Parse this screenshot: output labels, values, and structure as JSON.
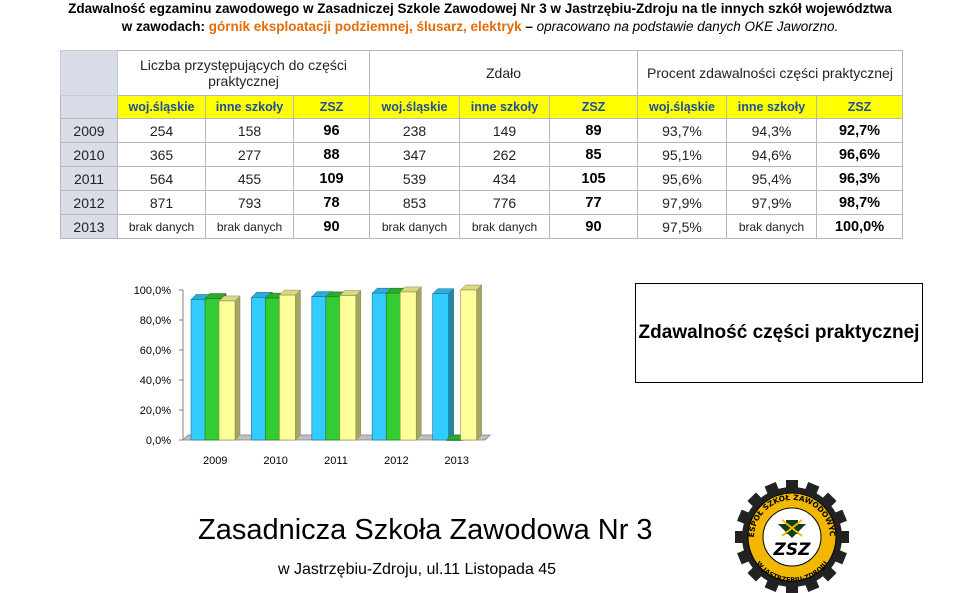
{
  "header": {
    "line1": "Zdawalność egzaminu zawodowego w Zasadniczej Szkole Zawodowej Nr 3 w Jastrzębiu-Zdroju na tle innych szkół województwa",
    "line2_prefix": "w zawodach: ",
    "line2_professions": "górnik eksploatacji podziemnej, ślusarz, elektryk",
    "line2_dash": " – ",
    "line2_source": "opracowano na podstawie danych OKE Jaworzno."
  },
  "table": {
    "groups": [
      "Liczba przystępujących do części praktycznej",
      "Zdało",
      "Procent zdawalności części praktycznej"
    ],
    "subheaders": [
      "woj.śląskie",
      "inne szkoły",
      "ZSZ",
      "woj.śląskie",
      "inne szkoły",
      "ZSZ",
      "woj.śląskie",
      "inne szkoły",
      "ZSZ"
    ],
    "rows": [
      {
        "year": "2009",
        "cells": [
          "254",
          "158",
          "96",
          "238",
          "149",
          "89",
          "93,7%",
          "94,3%",
          "92,7%"
        ]
      },
      {
        "year": "2010",
        "cells": [
          "365",
          "277",
          "88",
          "347",
          "262",
          "85",
          "95,1%",
          "94,6%",
          "96,6%"
        ]
      },
      {
        "year": "2011",
        "cells": [
          "564",
          "455",
          "109",
          "539",
          "434",
          "105",
          "95,6%",
          "95,4%",
          "96,3%"
        ]
      },
      {
        "year": "2012",
        "cells": [
          "871",
          "793",
          "78",
          "853",
          "776",
          "77",
          "97,9%",
          "97,9%",
          "98,7%"
        ]
      },
      {
        "year": "2013",
        "cells": [
          "brak danych",
          "brak danych",
          "90",
          "brak danych",
          "brak danych",
          "90",
          "97,5%",
          "brak danych",
          "100,0%"
        ]
      }
    ]
  },
  "chart_data": {
    "type": "bar",
    "categories": [
      "2009",
      "2010",
      "2011",
      "2012",
      "2013"
    ],
    "series": [
      {
        "values": [
          93.7,
          95.1,
          95.6,
          97.9,
          97.5
        ],
        "color": "#33ccff"
      },
      {
        "values": [
          94.3,
          94.6,
          95.4,
          97.9,
          0
        ],
        "color": "#33cc33"
      },
      {
        "values": [
          92.7,
          96.6,
          96.3,
          98.7,
          100.0
        ],
        "color": "#ffff99"
      }
    ],
    "yticks": [
      "100,0%",
      "80,0%",
      "60,0%",
      "40,0%",
      "20,0%",
      "0,0%"
    ],
    "ylim": [
      0,
      100
    ],
    "title": "Zdawalność części praktycznej"
  },
  "footer": {
    "school_name": "Zasadnicza Szkoła Zawodowa Nr 3",
    "address": "w Jastrzębiu-Zdroju, ul.11 Listopada 45"
  },
  "logo": {
    "ring_text_top": "ZESPÓŁ SZKÓŁ ZAWODOWYCH",
    "ring_text_bottom": "W JASTRZĘBIU-ZDROJU",
    "center_text": "ZSZ",
    "colors": {
      "gear": "#222222",
      "ring": "#f2b800",
      "center": "#ffffff"
    }
  }
}
